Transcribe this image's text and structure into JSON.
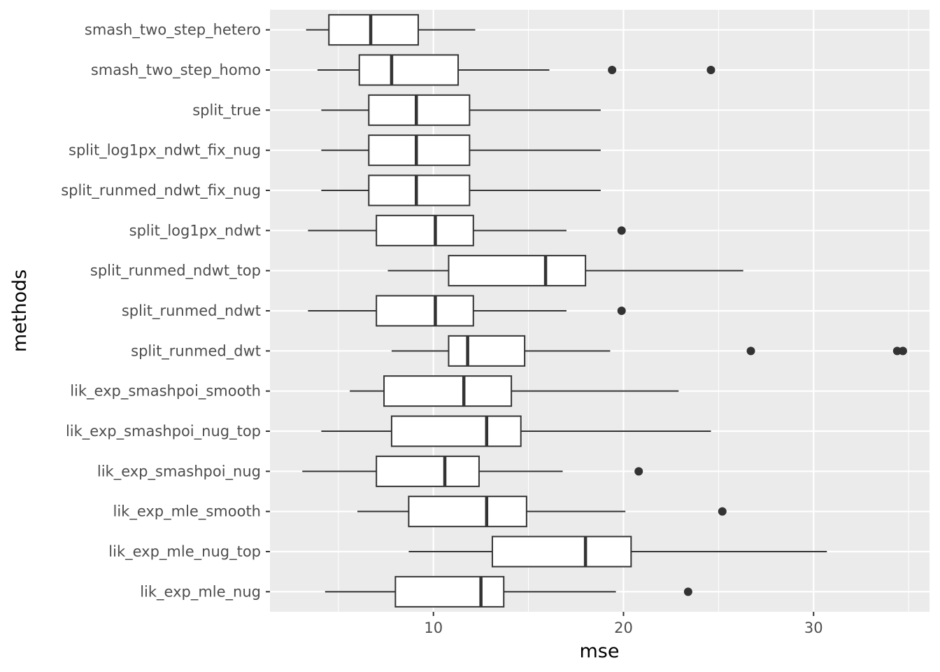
{
  "chart_data": {
    "type": "boxplot",
    "orientation": "horizontal",
    "xlabel": "mse",
    "ylabel": "methods",
    "xlim": [
      1.4,
      36.1
    ],
    "x_ticks": [
      10,
      20,
      30
    ],
    "x_tick_labels": [
      "10",
      "20",
      "30"
    ],
    "x_minor_ticks": [
      5,
      15,
      25,
      35
    ],
    "grid": true,
    "legend": "none",
    "colors": {
      "panel": "#ebebeb",
      "grid": "#ffffff",
      "box_fill": "#ffffff",
      "stroke": "#333333"
    },
    "categories": [
      "smash_two_step_hetero",
      "smash_two_step_homo",
      "split_true",
      "split_log1px_ndwt_fix_nug",
      "split_runmed_ndwt_fix_nug",
      "split_log1px_ndwt",
      "split_runmed_ndwt_top",
      "split_runmed_ndwt",
      "split_runmed_dwt",
      "lik_exp_smashpoi_smooth",
      "lik_exp_smashpoi_nug_top",
      "lik_exp_smashpoi_nug",
      "lik_exp_mle_smooth",
      "lik_exp_mle_nug_top",
      "lik_exp_mle_nug"
    ],
    "boxes": [
      {
        "min": 3.3,
        "q1": 4.5,
        "median": 6.7,
        "q3": 9.2,
        "max": 12.2,
        "outliers": []
      },
      {
        "min": 3.9,
        "q1": 6.1,
        "median": 7.8,
        "q3": 11.3,
        "max": 16.1,
        "outliers": [
          19.4,
          24.6
        ]
      },
      {
        "min": 4.1,
        "q1": 6.6,
        "median": 9.1,
        "q3": 11.9,
        "max": 18.8,
        "outliers": []
      },
      {
        "min": 4.1,
        "q1": 6.6,
        "median": 9.1,
        "q3": 11.9,
        "max": 18.8,
        "outliers": []
      },
      {
        "min": 4.1,
        "q1": 6.6,
        "median": 9.1,
        "q3": 11.9,
        "max": 18.8,
        "outliers": []
      },
      {
        "min": 3.4,
        "q1": 7.0,
        "median": 10.1,
        "q3": 12.1,
        "max": 17.0,
        "outliers": [
          19.9
        ]
      },
      {
        "min": 7.6,
        "q1": 10.8,
        "median": 15.9,
        "q3": 18.0,
        "max": 26.3,
        "outliers": []
      },
      {
        "min": 3.4,
        "q1": 7.0,
        "median": 10.1,
        "q3": 12.1,
        "max": 17.0,
        "outliers": [
          19.9
        ]
      },
      {
        "min": 7.8,
        "q1": 10.8,
        "median": 11.8,
        "q3": 14.8,
        "max": 19.3,
        "outliers": [
          26.7,
          34.4,
          34.7
        ]
      },
      {
        "min": 5.6,
        "q1": 7.4,
        "median": 11.6,
        "q3": 14.1,
        "max": 22.9,
        "outliers": []
      },
      {
        "min": 4.1,
        "q1": 7.8,
        "median": 12.8,
        "q3": 14.6,
        "max": 24.6,
        "outliers": []
      },
      {
        "min": 3.1,
        "q1": 7.0,
        "median": 10.6,
        "q3": 12.4,
        "max": 16.8,
        "outliers": [
          20.8
        ]
      },
      {
        "min": 6.0,
        "q1": 8.7,
        "median": 12.8,
        "q3": 14.9,
        "max": 20.1,
        "outliers": [
          25.2
        ]
      },
      {
        "min": 8.7,
        "q1": 13.1,
        "median": 18.0,
        "q3": 20.4,
        "max": 30.7,
        "outliers": []
      },
      {
        "min": 4.3,
        "q1": 8.0,
        "median": 12.5,
        "q3": 13.7,
        "max": 19.6,
        "outliers": [
          23.4
        ]
      }
    ]
  }
}
